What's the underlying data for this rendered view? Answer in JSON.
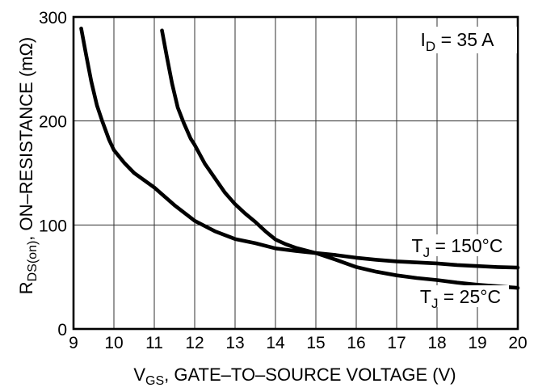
{
  "labels": {
    "y_title": {
      "pre": "R",
      "sub": "DS(on)",
      "post": ", ON–RESISTANCE (mΩ)"
    },
    "x_title": {
      "pre": "V",
      "sub": "GS",
      "post": ", GATE–TO–SOURCE VOLTAGE (V)"
    },
    "annotation": {
      "pre": "I",
      "sub": "D",
      "post": " = 35 A"
    },
    "curve_150": {
      "pre": "T",
      "sub": "J",
      "post": " = 150°C"
    },
    "curve_25": {
      "pre": "T",
      "sub": "J",
      "post": " = 25°C"
    }
  },
  "colors": {
    "curve": "#000000",
    "grid": "#303030",
    "background": "#ffffff",
    "text": "#000000"
  },
  "chart_data": {
    "type": "line",
    "title": "",
    "xlabel": "VGS, GATE–TO–SOURCE VOLTAGE (V)",
    "ylabel": "RDS(on), ON–RESISTANCE (mΩ)",
    "annotation": "ID = 35 A",
    "xlim": [
      9,
      20
    ],
    "ylim": [
      0,
      300
    ],
    "x_ticks": [
      9,
      10,
      11,
      12,
      13,
      14,
      15,
      16,
      17,
      18,
      19,
      20
    ],
    "y_ticks": [
      0,
      100,
      200,
      300
    ],
    "grid": "on",
    "legend_position": "inline-labels",
    "crossover_point": [
      15,
      73
    ],
    "series": [
      {
        "name": "TJ = 150°C",
        "points": [
          [
            9.19,
            289
          ],
          [
            9.31,
            264
          ],
          [
            9.44,
            238
          ],
          [
            9.58,
            215
          ],
          [
            9.71,
            200
          ],
          [
            9.88,
            182
          ],
          [
            10,
            172
          ],
          [
            10.25,
            160
          ],
          [
            10.5,
            150
          ],
          [
            10.75,
            143
          ],
          [
            11,
            136
          ],
          [
            11.5,
            119
          ],
          [
            12,
            104
          ],
          [
            12.5,
            94
          ],
          [
            13,
            86.5
          ],
          [
            13.5,
            82.5
          ],
          [
            14,
            77.5
          ],
          [
            14.5,
            75
          ],
          [
            15,
            73
          ],
          [
            15.5,
            71
          ],
          [
            16,
            68.5
          ],
          [
            16.5,
            66.5
          ],
          [
            17,
            65
          ],
          [
            17.5,
            64
          ],
          [
            18,
            63
          ],
          [
            18.5,
            61.5
          ],
          [
            19,
            60.5
          ],
          [
            19.5,
            59.5
          ],
          [
            20,
            59
          ]
        ]
      },
      {
        "name": "TJ = 25°C",
        "points": [
          [
            11.19,
            287
          ],
          [
            11.31,
            262
          ],
          [
            11.44,
            236
          ],
          [
            11.58,
            213
          ],
          [
            11.73,
            198
          ],
          [
            11.9,
            183
          ],
          [
            12,
            177
          ],
          [
            12.25,
            159
          ],
          [
            12.5,
            145
          ],
          [
            12.75,
            131
          ],
          [
            13,
            120
          ],
          [
            13.25,
            111
          ],
          [
            13.5,
            103
          ],
          [
            13.75,
            94
          ],
          [
            14,
            86
          ],
          [
            14.25,
            81.5
          ],
          [
            14.5,
            78
          ],
          [
            14.75,
            75.5
          ],
          [
            15,
            73
          ],
          [
            15.5,
            66.5
          ],
          [
            16,
            59.5
          ],
          [
            16.5,
            55
          ],
          [
            17,
            51.5
          ],
          [
            17.5,
            49
          ],
          [
            18,
            47
          ],
          [
            18.5,
            44.5
          ],
          [
            19,
            42.5
          ],
          [
            19.5,
            41
          ],
          [
            20,
            39.5
          ]
        ]
      }
    ]
  }
}
